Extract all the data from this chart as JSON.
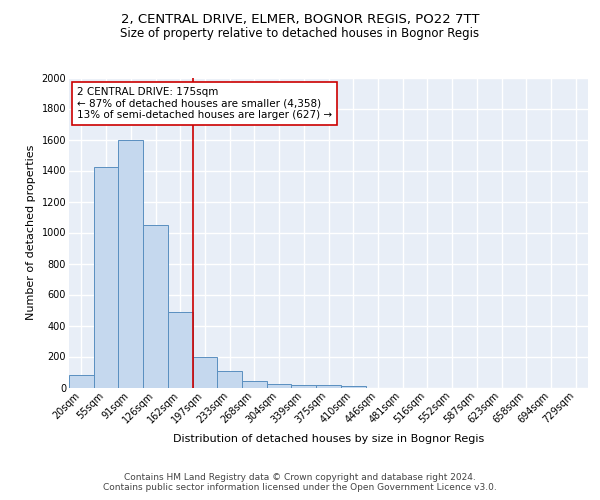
{
  "title_line1": "2, CENTRAL DRIVE, ELMER, BOGNOR REGIS, PO22 7TT",
  "title_line2": "Size of property relative to detached houses in Bognor Regis",
  "xlabel": "Distribution of detached houses by size in Bognor Regis",
  "ylabel": "Number of detached properties",
  "categories": [
    "20sqm",
    "55sqm",
    "91sqm",
    "126sqm",
    "162sqm",
    "197sqm",
    "233sqm",
    "268sqm",
    "304sqm",
    "339sqm",
    "375sqm",
    "410sqm",
    "446sqm",
    "481sqm",
    "516sqm",
    "552sqm",
    "587sqm",
    "623sqm",
    "658sqm",
    "694sqm",
    "729sqm"
  ],
  "values": [
    80,
    1420,
    1600,
    1050,
    490,
    200,
    105,
    45,
    25,
    15,
    15,
    10,
    0,
    0,
    0,
    0,
    0,
    0,
    0,
    0,
    0
  ],
  "bar_color": "#c5d8ee",
  "bar_edge_color": "#5a8fc0",
  "vline_x_idx": 4.5,
  "vline_color": "#cc0000",
  "annotation_text": "2 CENTRAL DRIVE: 175sqm\n← 87% of detached houses are smaller (4,358)\n13% of semi-detached houses are larger (627) →",
  "annotation_box_color": "white",
  "annotation_box_edge_color": "#cc0000",
  "ylim": [
    0,
    2000
  ],
  "yticks": [
    0,
    200,
    400,
    600,
    800,
    1000,
    1200,
    1400,
    1600,
    1800,
    2000
  ],
  "background_color": "#e8eef7",
  "grid_color": "white",
  "footer_text": "Contains HM Land Registry data © Crown copyright and database right 2024.\nContains public sector information licensed under the Open Government Licence v3.0.",
  "title_fontsize": 9.5,
  "subtitle_fontsize": 8.5,
  "axis_label_fontsize": 8,
  "tick_fontsize": 7,
  "annotation_fontsize": 7.5,
  "footer_fontsize": 6.5
}
